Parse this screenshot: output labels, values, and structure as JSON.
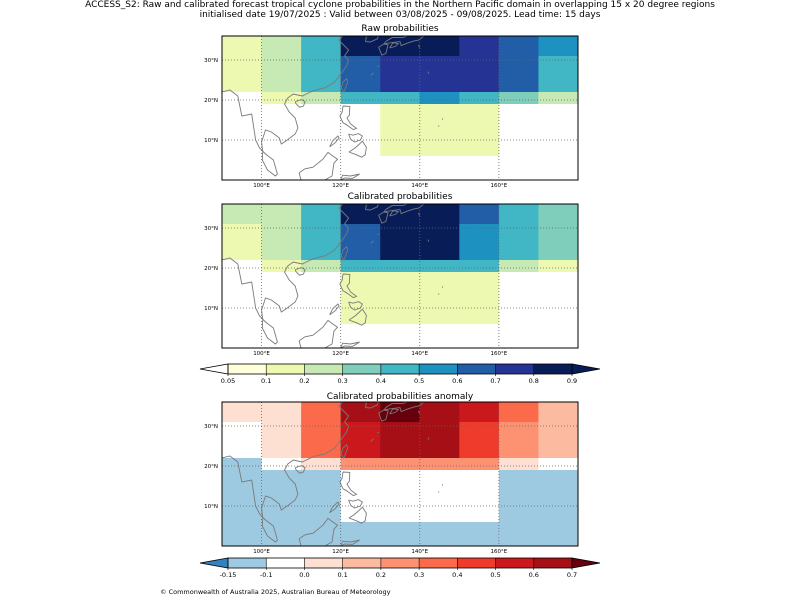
{
  "header": {
    "title_line1": "ACCESS_S2: Raw and calibrated forecast tropical cyclone probabilities in the Northern Pacific domain in overlapping 15 x 20 degree regions",
    "title_line2": "initialised date 19/07/2025 :  Valid between 03/08/2025 - 09/08/2025. Lead time: 15 days"
  },
  "map": {
    "lon_ticks": [
      "100°E",
      "120°E",
      "140°E",
      "160°E"
    ],
    "lon_values": [
      100,
      120,
      140,
      160
    ],
    "lat_ticks": [
      "30°N",
      "20°N",
      "10°N"
    ],
    "lat_values": [
      30,
      20,
      10
    ],
    "lon_range": [
      90,
      180
    ],
    "lat_range": [
      0,
      36
    ],
    "coastline_color": "#7a7a7a",
    "gridline_style": "dotted"
  },
  "panels": [
    {
      "id": "raw",
      "title": "Raw probabilities",
      "colormap": "prob",
      "rows": [
        {
          "lat": [
            31,
            36
          ],
          "cells": [
            0.1,
            0.2,
            0.4,
            0.8,
            0.9,
            0.8,
            0.7,
            0.6,
            0.5
          ]
        },
        {
          "lat": [
            26,
            31
          ],
          "cells": [
            0.1,
            0.2,
            0.4,
            0.6,
            0.7,
            0.7,
            0.7,
            0.6,
            0.4
          ]
        },
        {
          "lat": [
            22,
            26
          ],
          "cells": [
            0.1,
            0.2,
            0.4,
            0.6,
            0.7,
            0.7,
            0.7,
            0.6,
            0.4
          ]
        },
        {
          "lat": [
            19,
            22
          ],
          "cells": [
            0.0,
            0.1,
            0.2,
            0.4,
            0.4,
            0.5,
            0.4,
            0.3,
            0.2
          ]
        },
        {
          "lat": [
            14,
            19
          ],
          "cells": [
            0.0,
            0.0,
            0.0,
            0.0,
            0.1,
            0.1,
            0.1,
            0.0,
            0.0
          ]
        },
        {
          "lat": [
            6,
            14
          ],
          "cells": [
            0.0,
            0.0,
            0.0,
            0.0,
            0.1,
            0.1,
            0.1,
            0.0,
            0.0
          ]
        },
        {
          "lat": [
            0,
            6
          ],
          "cells": [
            0.0,
            0.0,
            0.0,
            0.0,
            0.0,
            0.0,
            0.0,
            0.0,
            0.0
          ]
        }
      ]
    },
    {
      "id": "calibrated",
      "title": "Calibrated probabilities",
      "colormap": "prob",
      "rows": [
        {
          "lat": [
            31,
            36
          ],
          "cells": [
            0.2,
            0.2,
            0.4,
            0.8,
            0.9,
            0.8,
            0.6,
            0.4,
            0.3
          ]
        },
        {
          "lat": [
            26,
            31
          ],
          "cells": [
            0.1,
            0.2,
            0.4,
            0.6,
            0.8,
            0.8,
            0.5,
            0.4,
            0.3
          ]
        },
        {
          "lat": [
            22,
            26
          ],
          "cells": [
            0.1,
            0.2,
            0.4,
            0.6,
            0.8,
            0.8,
            0.5,
            0.4,
            0.3
          ]
        },
        {
          "lat": [
            19,
            22
          ],
          "cells": [
            0.0,
            0.1,
            0.2,
            0.4,
            0.4,
            0.4,
            0.4,
            0.2,
            0.1
          ]
        },
        {
          "lat": [
            14,
            19
          ],
          "cells": [
            0.0,
            0.0,
            0.0,
            0.1,
            0.1,
            0.1,
            0.1,
            0.0,
            0.0
          ]
        },
        {
          "lat": [
            6,
            14
          ],
          "cells": [
            0.0,
            0.0,
            0.0,
            0.1,
            0.1,
            0.1,
            0.1,
            0.0,
            0.0
          ]
        },
        {
          "lat": [
            0,
            6
          ],
          "cells": [
            0.0,
            0.0,
            0.0,
            0.0,
            0.0,
            0.0,
            0.0,
            0.0,
            0.0
          ]
        }
      ]
    },
    {
      "id": "anomaly",
      "title": "Calibrated probabilities anomaly",
      "colormap": "anom",
      "rows": [
        {
          "lat": [
            31,
            36
          ],
          "cells": [
            0.05,
            0.05,
            0.3,
            0.6,
            0.7,
            0.6,
            0.5,
            0.3,
            0.1
          ]
        },
        {
          "lat": [
            26,
            31
          ],
          "cells": [
            -0.1,
            0.05,
            0.3,
            0.5,
            0.6,
            0.6,
            0.4,
            0.2,
            0.1
          ]
        },
        {
          "lat": [
            22,
            26
          ],
          "cells": [
            -0.1,
            0.05,
            0.3,
            0.5,
            0.6,
            0.6,
            0.4,
            0.2,
            0.1
          ]
        },
        {
          "lat": [
            19,
            22
          ],
          "cells": [
            -0.15,
            -0.1,
            0.05,
            0.2,
            0.2,
            0.2,
            0.2,
            0.05,
            -0.1
          ]
        },
        {
          "lat": [
            14,
            19
          ],
          "cells": [
            -0.15,
            -0.15,
            -0.15,
            -0.1,
            -0.1,
            -0.1,
            -0.1,
            -0.15,
            -0.15
          ]
        },
        {
          "lat": [
            6,
            14
          ],
          "cells": [
            -0.15,
            -0.15,
            -0.15,
            -0.1,
            -0.1,
            -0.1,
            -0.1,
            -0.15,
            -0.15
          ]
        },
        {
          "lat": [
            0,
            6
          ],
          "cells": [
            -0.15,
            -0.15,
            -0.15,
            -0.15,
            -0.15,
            -0.15,
            -0.15,
            -0.15,
            -0.15
          ]
        }
      ]
    }
  ],
  "colorbars": {
    "prob": {
      "labels": [
        "0.05",
        "0.1",
        "0.2",
        "0.3",
        "0.4",
        "0.5",
        "0.6",
        "0.7",
        "0.8",
        "0.9"
      ],
      "bounds": [
        0.05,
        0.1,
        0.2,
        0.3,
        0.4,
        0.5,
        0.6,
        0.7,
        0.8,
        0.9
      ],
      "under_color": "#ffffff",
      "over_color": "#081d58",
      "colors": [
        "#ffffd9",
        "#edf8b1",
        "#c7e9b4",
        "#7fcdbb",
        "#41b6c4",
        "#1d91c0",
        "#225ea8",
        "#253494",
        "#081d58"
      ]
    },
    "anom": {
      "labels": [
        "-0.15",
        "-0.1",
        "0.0",
        "0.1",
        "0.2",
        "0.3",
        "0.4",
        "0.5",
        "0.6",
        "0.7"
      ],
      "bounds": [
        -0.15,
        -0.1,
        0.0,
        0.1,
        0.2,
        0.3,
        0.4,
        0.5,
        0.6,
        0.7
      ],
      "under_color": "#3182bd",
      "over_color": "#67000d",
      "colors": [
        "#9ecae1",
        "#ffffff",
        "#fee0d2",
        "#fcbba1",
        "#fc9272",
        "#fb6a4a",
        "#ef3b2c",
        "#cb181d",
        "#a50f15"
      ]
    }
  },
  "footer": {
    "copyright": "© Commonwealth of Australia 2025, Australian Bureau of Meteorology"
  }
}
